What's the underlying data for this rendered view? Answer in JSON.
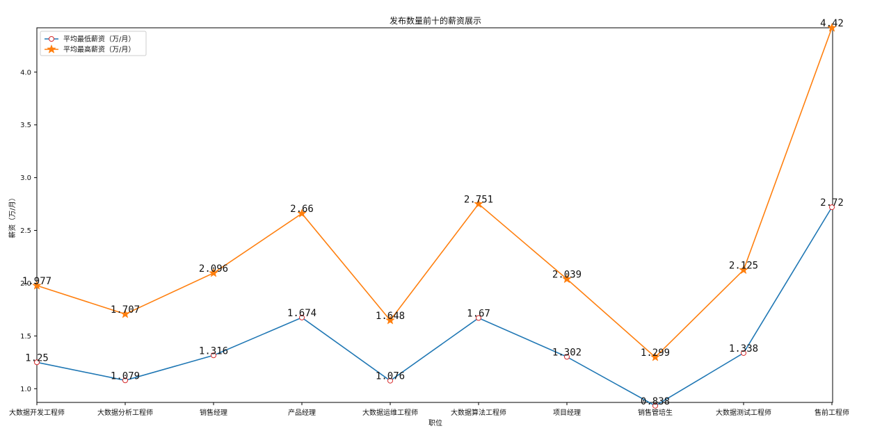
{
  "chart_data": {
    "type": "line",
    "title": "发布数量前十的薪资展示",
    "xlabel": "职位",
    "ylabel": "薪资（万/月）",
    "categories": [
      "大数据开发工程师",
      "大数据分析工程师",
      "销售经理",
      "产品经理",
      "大数据运维工程师",
      "大数据算法工程师",
      "项目经理",
      "销售管培生",
      "大数据测试工程师",
      "售前工程师"
    ],
    "yticks": [
      "1.0",
      "1.5",
      "2.0",
      "2.5",
      "3.0",
      "3.5",
      "4.0"
    ],
    "ylim": [
      0.87,
      4.42
    ],
    "series": [
      {
        "name": "平均最低薪资（万/月）",
        "color": "#1f77b4",
        "marker": "circle",
        "values": [
          1.25,
          1.079,
          1.316,
          1.674,
          1.076,
          1.67,
          1.302,
          0.838,
          1.338,
          2.72
        ],
        "labels": [
          "1.25",
          "1.079",
          "1.316",
          "1.674",
          "1.076",
          "1.67",
          "1.302",
          "0.838",
          "1.338",
          "2.72"
        ]
      },
      {
        "name": "平均最高薪资（万/月）",
        "color": "#ff7f0e",
        "marker": "star",
        "values": [
          1.977,
          1.707,
          2.096,
          2.66,
          1.648,
          2.751,
          2.039,
          1.299,
          2.125,
          4.42
        ],
        "labels": [
          "1.977",
          "1.707",
          "2.096",
          "2.66",
          "1.648",
          "2.751",
          "2.039",
          "1.299",
          "2.125",
          "4.42"
        ]
      }
    ],
    "legend_position": "top-left",
    "grid": false
  }
}
